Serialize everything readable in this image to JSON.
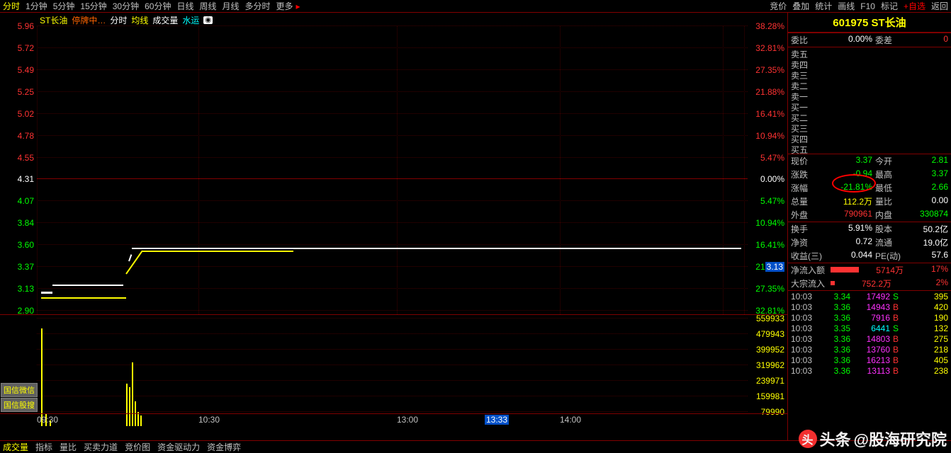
{
  "topbar": {
    "timeframes": [
      "分时",
      "1分钟",
      "5分钟",
      "15分钟",
      "30分钟",
      "60分钟",
      "日线",
      "周线",
      "月线",
      "多分时",
      "更多"
    ],
    "active_tf": "分时",
    "tools": [
      "竞价",
      "叠加",
      "统计",
      "画线",
      "F10",
      "标记"
    ],
    "plus": "+自选",
    "back": "返回"
  },
  "chart": {
    "stock_name": "ST长油",
    "status": "停牌中…",
    "legend_time": "分时",
    "legend_avg": "均线",
    "legend_vol": "成交量",
    "legend_sector": "水运",
    "left_prices": [
      "5.96",
      "5.72",
      "5.49",
      "5.25",
      "5.02",
      "4.78",
      "4.55",
      "4.31",
      "4.07",
      "3.84",
      "3.60",
      "3.37",
      "3.13",
      "2.90"
    ],
    "left_colors": [
      "r",
      "r",
      "r",
      "r",
      "r",
      "r",
      "r",
      "w",
      "g",
      "g",
      "g",
      "g",
      "g",
      "g"
    ],
    "right_pcts": [
      "38.28%",
      "32.81%",
      "27.35%",
      "21.88%",
      "16.41%",
      "10.94%",
      "5.47%",
      "0.00%",
      "5.47%",
      "10.94%",
      "16.41%",
      "21.88%",
      "27.35%",
      "32.81%"
    ],
    "cursor_price": "3.13",
    "vol_labels": [
      "559933",
      "479943",
      "399952",
      "319962",
      "239971",
      "159981",
      "79990"
    ],
    "time_labels": {
      "0930": "09:30",
      "1030": "10:30",
      "1300": "13:00",
      "1333": "13:33",
      "1400": "14:00"
    },
    "btn1": "国信微信",
    "btn2": "国信股搜"
  },
  "bottombar": {
    "tabs": [
      "成交量",
      "指标",
      "量比",
      "买卖力道",
      "竞价图",
      "资金驱动力",
      "资金博弈"
    ],
    "active": "成交量"
  },
  "panel": {
    "title": "601975 ST长油",
    "weibi_lbl": "委比",
    "weibi_val": "0.00%",
    "weicha_lbl": "委差",
    "weicha_val": "0",
    "orderbook_sell": [
      "卖五",
      "卖四",
      "卖三",
      "卖二",
      "卖一"
    ],
    "orderbook_buy": [
      "买一",
      "买二",
      "买三",
      "买四",
      "买五"
    ],
    "rows": [
      {
        "l": "现价",
        "v": "3.37",
        "c": "g",
        "l2": "今开",
        "v2": "2.81",
        "c2": "g"
      },
      {
        "l": "涨跌",
        "v": "-0.94",
        "c": "g",
        "l2": "最高",
        "v2": "3.37",
        "c2": "g"
      },
      {
        "l": "涨幅",
        "v": "-21.81%",
        "c": "g",
        "l2": "最低",
        "v2": "2.66",
        "c2": "g"
      },
      {
        "l": "总量",
        "v": "112.2万",
        "c": "y",
        "l2": "量比",
        "v2": "0.00",
        "c2": "w"
      },
      {
        "l": "外盘",
        "v": "790961",
        "c": "r",
        "l2": "内盘",
        "v2": "330874",
        "c2": "g"
      }
    ],
    "rows2": [
      {
        "l": "换手",
        "v": "5.91%",
        "c": "w",
        "l2": "股本",
        "v2": "50.2亿",
        "c2": "w"
      },
      {
        "l": "净资",
        "v": "0.72",
        "c": "w",
        "l2": "流通",
        "v2": "19.0亿",
        "c2": "w"
      },
      {
        "l": "收益(三)",
        "v": "0.044",
        "c": "w",
        "l2": "PE(动)",
        "v2": "57.6",
        "c2": "w"
      }
    ],
    "flow1_lbl": "净流入额",
    "flow1_v": "5714万",
    "flow1_p": "17%",
    "flow2_lbl": "大宗流入",
    "flow2_v": "752.2万",
    "flow2_p": "2%",
    "ticks": [
      {
        "t": "10:03",
        "p": "3.34",
        "pc": "g",
        "v": "17492",
        "vc": "m",
        "d": "S",
        "dc": "g",
        "n": "395"
      },
      {
        "t": "10:03",
        "p": "3.36",
        "pc": "g",
        "v": "14943",
        "vc": "m",
        "d": "B",
        "dc": "r",
        "n": "420"
      },
      {
        "t": "10:03",
        "p": "3.36",
        "pc": "g",
        "v": "7916",
        "vc": "m",
        "d": "B",
        "dc": "r",
        "n": "190"
      },
      {
        "t": "10:03",
        "p": "3.35",
        "pc": "g",
        "v": "6441",
        "vc": "c",
        "d": "S",
        "dc": "g",
        "n": "132"
      },
      {
        "t": "10:03",
        "p": "3.36",
        "pc": "g",
        "v": "14803",
        "vc": "m",
        "d": "B",
        "dc": "r",
        "n": "275"
      },
      {
        "t": "10:03",
        "p": "3.36",
        "pc": "g",
        "v": "13760",
        "vc": "m",
        "d": "B",
        "dc": "r",
        "n": "218"
      },
      {
        "t": "10:03",
        "p": "3.36",
        "pc": "g",
        "v": "16213",
        "vc": "m",
        "d": "B",
        "dc": "r",
        "n": "405"
      },
      {
        "t": "10:03",
        "p": "3.36",
        "pc": "g",
        "v": "13113",
        "vc": "m",
        "d": "B",
        "dc": "r",
        "n": "238"
      }
    ]
  },
  "watermark": {
    "prefix": "头条",
    "handle": "@股海研究院"
  }
}
